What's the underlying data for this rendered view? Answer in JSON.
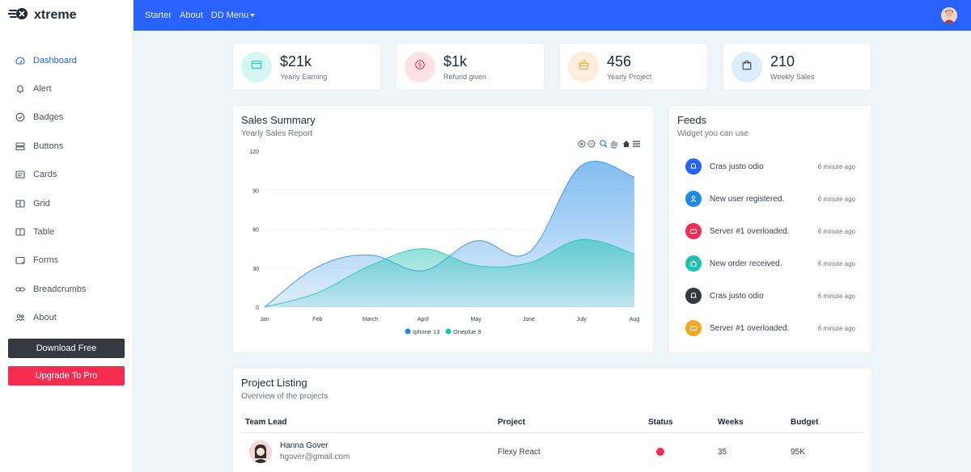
{
  "brand": {
    "name": "xtreme"
  },
  "sidebar": {
    "items": [
      {
        "label": "Dashboard",
        "icon": "speedometer-icon",
        "active": true
      },
      {
        "label": "Alert",
        "icon": "bell-icon"
      },
      {
        "label": "Badges",
        "icon": "check-circle-icon"
      },
      {
        "label": "Buttons",
        "icon": "hdd-stack-icon"
      },
      {
        "label": "Cards",
        "icon": "card-text-icon"
      },
      {
        "label": "Grid",
        "icon": "columns-icon"
      },
      {
        "label": "Table",
        "icon": "layout-split-icon"
      },
      {
        "label": "Forms",
        "icon": "textarea-icon"
      },
      {
        "label": "Breadcrumbs",
        "icon": "link-icon"
      },
      {
        "label": "About",
        "icon": "people-icon"
      }
    ],
    "download_label": "Download Free",
    "upgrade_label": "Upgrade To Pro"
  },
  "topbar": {
    "links": [
      "Starter",
      "About",
      "DD Menu"
    ]
  },
  "stats": [
    {
      "value": "$21k",
      "label": "Yearly Earning",
      "icon": "card-icon",
      "bg": "#d5f7f4",
      "fg": "#21c1b1"
    },
    {
      "value": "$1k",
      "label": "Refund given",
      "icon": "coin-icon",
      "bg": "#fde1e5",
      "fg": "#f62d51"
    },
    {
      "value": "456",
      "label": "Yearly Project",
      "icon": "basket-icon",
      "bg": "#fdeddb",
      "fg": "#f5a623"
    },
    {
      "value": "210",
      "label": "Weekly Sales",
      "icon": "bag-icon",
      "bg": "#dceefb",
      "fg": "#343a40"
    }
  ],
  "sales": {
    "title": "Sales Summary",
    "subtitle": "Yearly Sales Report"
  },
  "chart_data": {
    "type": "area",
    "categories": [
      "Jan",
      "Feb",
      "March",
      "April",
      "May",
      "June",
      "July",
      "Aug"
    ],
    "ylim": [
      0,
      120
    ],
    "yticks": [
      "0",
      "30",
      "60",
      "90",
      "120"
    ],
    "grid": true,
    "legend": "bottom",
    "series": [
      {
        "name": "Iphone 13",
        "color": "#1e88e5",
        "values": [
          0,
          31,
          40,
          28,
          51,
          42,
          109,
          100
        ]
      },
      {
        "name": "Oneplue 9",
        "color": "#21c1b1",
        "values": [
          0,
          11,
          32,
          45,
          32,
          34,
          52,
          41
        ]
      }
    ]
  },
  "feeds": {
    "title": "Feeds",
    "subtitle": "Widget you can use",
    "items": [
      {
        "text": "Cras justo odio",
        "time": "6 minute ago",
        "icon": "bell-icon",
        "color": "#2962ff"
      },
      {
        "text": "New user registered.",
        "time": "6 minute ago",
        "icon": "person-icon",
        "color": "#1e88e5"
      },
      {
        "text": "Server #1 overloaded.",
        "time": "6 minute ago",
        "icon": "hdd-icon",
        "color": "#f62d51"
      },
      {
        "text": "New order received.",
        "time": "6 minute ago",
        "icon": "bag-check-icon",
        "color": "#21c1b1"
      },
      {
        "text": "Cras justo odio",
        "time": "6 minute ago",
        "icon": "bell-icon",
        "color": "#343a40"
      },
      {
        "text": "Server #1 overloaded.",
        "time": "6 minute ago",
        "icon": "hdd-icon",
        "color": "#f5a623"
      }
    ]
  },
  "projects": {
    "title": "Project Listing",
    "subtitle": "Overview of the projects",
    "headers": [
      "Team Lead",
      "Project",
      "Status",
      "Weeks",
      "Budget"
    ],
    "rows": [
      {
        "name": "Hanna Gover",
        "email": "hgover@gmail.com",
        "project": "Flexy React",
        "status_color": "#f62d51",
        "weeks": "35",
        "budget": "95K"
      }
    ]
  }
}
